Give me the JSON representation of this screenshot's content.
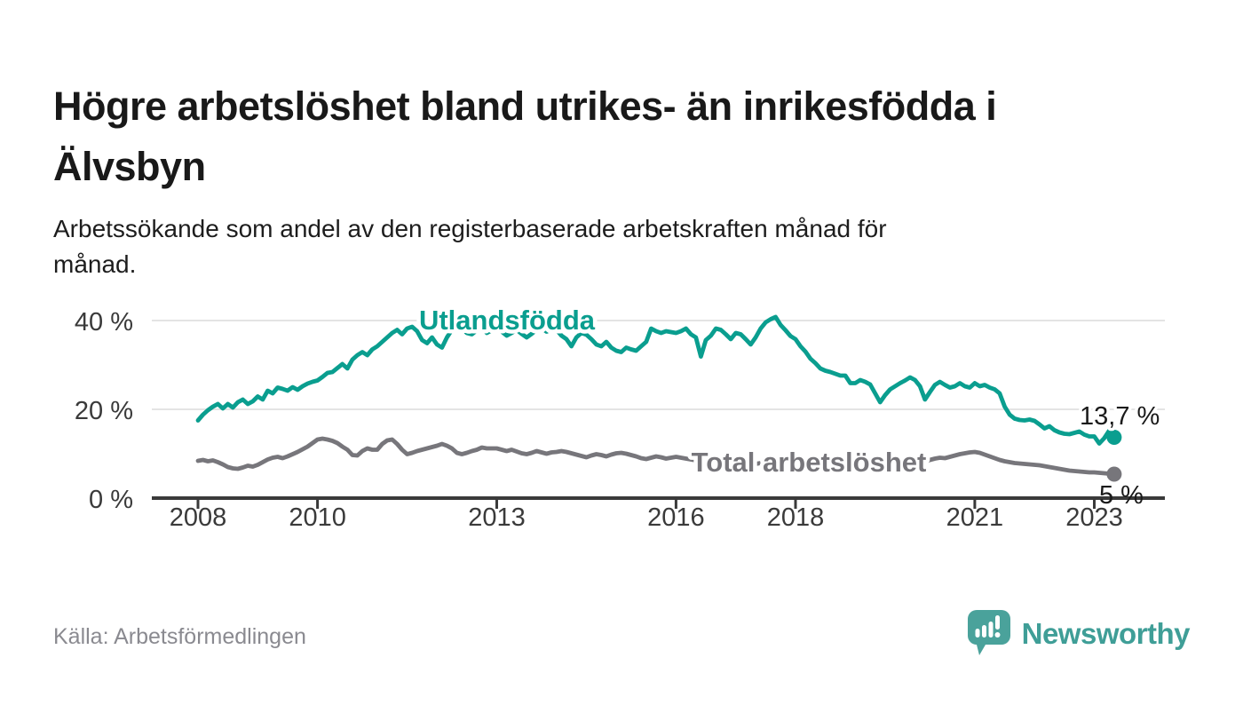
{
  "header": {
    "title": "Högre arbetslöshet bland utrikes- än inrikesfödda i\nÄlvsbyn",
    "subtitle": "Arbetssökande som andel av den registerbaserade arbetskraften månad för\nmånad."
  },
  "footer": {
    "source": "Källa: Arbetsförmedlingen",
    "brand_name": "Newsworthy",
    "brand_color": "#3f9e97",
    "logo_bubble_color": "#4aa29b"
  },
  "colors": {
    "background": "#ffffff",
    "title_text": "#191919",
    "axis": "#3a3a3a",
    "gridline": "#e4e4e4",
    "series_utlandsfodda": "#0a9e8f",
    "series_total": "#77767b"
  },
  "chart_data": {
    "type": "line",
    "title": "Högre arbetslöshet bland utrikes- än inrikesfödda i Älvsbyn",
    "subtitle": "Arbetssökande som andel av den registerbaserade arbetskraften månad för månad.",
    "unit": "%",
    "x_start": "2008-01",
    "x_end": "2023-05",
    "x_frequency": "monthly",
    "ylim": [
      0,
      44
    ],
    "grid": "horizontal",
    "x_axis": {
      "ticks": [
        {
          "year": 2008,
          "label": "2008"
        },
        {
          "year": 2010,
          "label": "2010"
        },
        {
          "year": 2013,
          "label": "2013"
        },
        {
          "year": 2016,
          "label": "2016"
        },
        {
          "year": 2018,
          "label": "2018"
        },
        {
          "year": 2021,
          "label": "2021"
        },
        {
          "year": 2023,
          "label": "2023"
        }
      ]
    },
    "y_axis": {
      "ticks": [
        {
          "value": 0,
          "label": "0 %"
        },
        {
          "value": 20,
          "label": "20 %"
        },
        {
          "value": 40,
          "label": "40 %"
        }
      ]
    },
    "series": [
      {
        "name": "Utlandsfödda",
        "color": "#0a9e8f",
        "end_label": "13,7 %",
        "end_value": 13.7,
        "values": [
          17.5,
          18.8,
          19.8,
          20.6,
          21.2,
          20.2,
          21.2,
          20.4,
          21.6,
          22.2,
          21.2,
          21.8,
          22.9,
          22.2,
          24.2,
          23.6,
          24.9,
          24.6,
          24.2,
          25.0,
          24.4,
          25.2,
          25.8,
          26.2,
          26.5,
          27.3,
          28.2,
          28.4,
          29.3,
          30.2,
          29.2,
          31.2,
          32.2,
          32.9,
          32.2,
          33.5,
          34.2,
          35.2,
          36.2,
          37.2,
          37.9,
          36.9,
          38.2,
          38.6,
          37.6,
          35.6,
          34.9,
          36.2,
          34.6,
          33.9,
          36.2,
          37.9,
          38.9,
          38.3,
          37.2,
          36.9,
          37.8,
          38.4,
          37.2,
          37.8,
          38.2,
          37.5,
          36.6,
          37.2,
          37.9,
          37.0,
          36.2,
          37.0,
          37.9,
          38.3,
          37.5,
          38.0,
          37.9,
          36.6,
          35.8,
          34.2,
          36.2,
          37.2,
          36.8,
          35.8,
          34.6,
          34.2,
          35.2,
          33.9,
          33.2,
          32.9,
          33.9,
          33.5,
          33.2,
          34.2,
          35.2,
          38.2,
          37.6,
          37.2,
          37.6,
          37.4,
          37.2,
          37.6,
          38.2,
          36.9,
          36.2,
          31.9,
          35.6,
          36.6,
          38.2,
          37.9,
          36.9,
          35.8,
          37.2,
          36.9,
          35.8,
          34.6,
          36.2,
          38.2,
          39.6,
          40.3,
          40.8,
          39.0,
          37.8,
          36.5,
          35.8,
          34.2,
          33.0,
          31.4,
          30.4,
          29.2,
          28.7,
          28.4,
          28.0,
          27.6,
          27.6,
          25.9,
          25.9,
          26.6,
          26.2,
          25.6,
          23.6,
          21.6,
          23.2,
          24.5,
          25.2,
          25.9,
          26.5,
          27.2,
          26.6,
          25.2,
          22.2,
          23.9,
          25.5,
          26.2,
          25.5,
          24.9,
          25.2,
          25.9,
          25.2,
          24.9,
          25.9,
          25.2,
          25.5,
          24.9,
          24.5,
          23.6,
          20.6,
          18.8,
          17.9,
          17.6,
          17.5,
          17.7,
          17.4,
          16.6,
          15.7,
          16.2,
          15.3,
          14.8,
          14.5,
          14.4,
          14.7,
          15.0,
          14.3,
          13.9,
          13.9,
          12.3,
          13.5,
          15.2,
          13.7
        ]
      },
      {
        "name": "Total arbetslöshet",
        "color": "#77767b",
        "end_label": "5 %",
        "end_value": 5.4,
        "values": [
          8.4,
          8.6,
          8.3,
          8.5,
          8.1,
          7.6,
          7.0,
          6.7,
          6.6,
          6.9,
          7.3,
          7.1,
          7.5,
          8.1,
          8.7,
          9.1,
          9.3,
          9.0,
          9.4,
          9.9,
          10.4,
          11.0,
          11.6,
          12.4,
          13.2,
          13.4,
          13.2,
          12.9,
          12.4,
          11.6,
          10.9,
          9.7,
          9.6,
          10.6,
          11.2,
          10.9,
          10.9,
          12.2,
          13.0,
          13.2,
          12.2,
          10.9,
          9.9,
          10.2,
          10.6,
          10.9,
          11.2,
          11.5,
          11.8,
          12.2,
          11.8,
          11.2,
          10.2,
          9.9,
          10.2,
          10.6,
          10.9,
          11.4,
          11.2,
          11.2,
          11.2,
          10.9,
          10.6,
          10.9,
          10.5,
          10.1,
          9.9,
          10.2,
          10.6,
          10.3,
          10.0,
          10.3,
          10.4,
          10.6,
          10.4,
          10.1,
          9.8,
          9.5,
          9.2,
          9.6,
          9.9,
          9.7,
          9.4,
          9.8,
          10.1,
          10.2,
          10.0,
          9.7,
          9.4,
          9.0,
          8.8,
          9.1,
          9.4,
          9.2,
          8.9,
          9.1,
          9.3,
          9.1,
          8.9,
          8.7,
          8.5,
          8.3,
          8.1,
          8.4,
          8.7,
          8.5,
          8.2,
          8.4,
          8.6,
          8.4,
          8.1,
          7.9,
          7.7,
          7.9,
          8.2,
          8.4,
          8.6,
          8.4,
          8.1,
          8.3,
          8.5,
          8.3,
          8.1,
          7.9,
          7.7,
          7.5,
          7.4,
          7.6,
          7.8,
          7.7,
          7.8,
          8.0,
          8.1,
          8.3,
          8.4,
          8.2,
          8.0,
          8.2,
          8.4,
          8.6,
          8.5,
          8.6,
          8.4,
          8.3,
          8.1,
          7.9,
          8.2,
          8.6,
          8.9,
          9.1,
          9.0,
          9.3,
          9.6,
          9.9,
          10.1,
          10.3,
          10.4,
          10.2,
          9.8,
          9.4,
          9.0,
          8.6,
          8.3,
          8.1,
          7.9,
          7.8,
          7.7,
          7.6,
          7.5,
          7.4,
          7.2,
          7.0,
          6.8,
          6.6,
          6.4,
          6.2,
          6.1,
          6.0,
          5.9,
          5.8,
          5.8,
          5.7,
          5.6,
          5.5,
          5.4
        ]
      }
    ],
    "source": "Källa: Arbetsförmedlingen"
  }
}
